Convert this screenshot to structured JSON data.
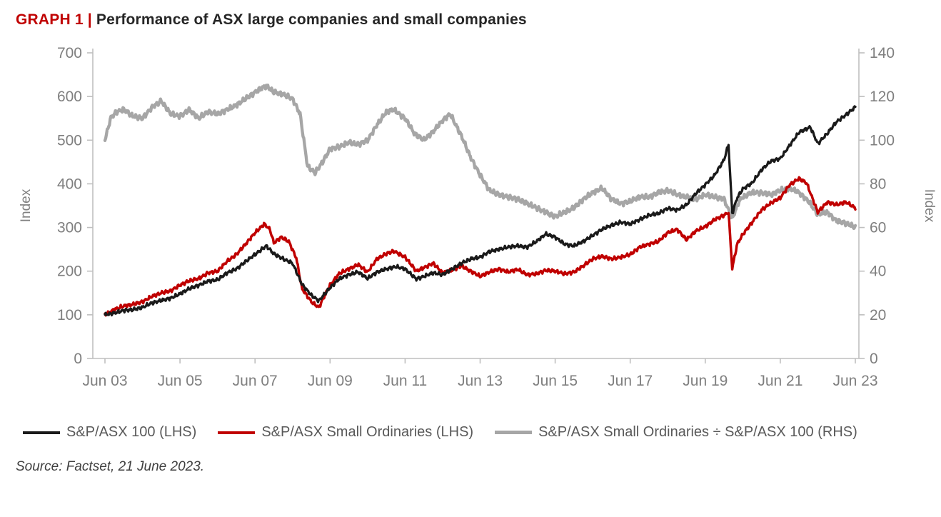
{
  "header": {
    "tag": "GRAPH 1 |",
    "title": "Performance of ASX large companies and small companies"
  },
  "source": "Source: Factset, 21 June 2023.",
  "colors": {
    "accent_red": "#C00000",
    "axis_line": "#BFBFBF",
    "tick_text": "#7F7F7F",
    "legend_text": "#595959"
  },
  "chart_data": {
    "type": "line",
    "title": "Performance of ASX large companies and small companies",
    "xlabel": "",
    "grid": false,
    "legend_position": "bottom",
    "left_axis": {
      "label": "Index",
      "min": 0,
      "max": 700,
      "ticks": [
        0,
        100,
        200,
        300,
        400,
        500,
        600,
        700
      ]
    },
    "right_axis": {
      "label": "Index",
      "min": 0,
      "max": 140,
      "ticks": [
        0,
        20,
        40,
        60,
        80,
        100,
        120,
        140
      ]
    },
    "x_axis": {
      "tick_positions": [
        2003.5,
        2005.5,
        2007.5,
        2009.5,
        2011.5,
        2013.5,
        2015.5,
        2017.5,
        2019.5,
        2021.5,
        2023.5
      ],
      "tick_labels": [
        "Jun 03",
        "Jun 05",
        "Jun 07",
        "Jun 09",
        "Jun 11",
        "Jun 13",
        "Jun 15",
        "Jun 17",
        "Jun 19",
        "Jun 21",
        "Jun 23"
      ],
      "range": [
        2003.5,
        2023.5
      ]
    },
    "series": [
      {
        "name": "S&P/ASX 100 (LHS)",
        "axis": "left",
        "color": "#1A1A1A",
        "points": [
          [
            2003.5,
            100
          ],
          [
            2003.75,
            104
          ],
          [
            2004,
            110
          ],
          [
            2004.25,
            112
          ],
          [
            2004.5,
            117
          ],
          [
            2004.75,
            127
          ],
          [
            2005,
            133
          ],
          [
            2005.25,
            138
          ],
          [
            2005.5,
            148
          ],
          [
            2005.75,
            160
          ],
          [
            2006,
            168
          ],
          [
            2006.25,
            177
          ],
          [
            2006.5,
            180
          ],
          [
            2006.75,
            196
          ],
          [
            2007,
            205
          ],
          [
            2007.25,
            222
          ],
          [
            2007.5,
            238
          ],
          [
            2007.8,
            258
          ],
          [
            2008,
            240
          ],
          [
            2008.25,
            228
          ],
          [
            2008.5,
            218
          ],
          [
            2008.75,
            170
          ],
          [
            2009,
            145
          ],
          [
            2009.2,
            132
          ],
          [
            2009.5,
            162
          ],
          [
            2009.75,
            183
          ],
          [
            2010,
            192
          ],
          [
            2010.25,
            198
          ],
          [
            2010.5,
            183
          ],
          [
            2010.75,
            198
          ],
          [
            2011,
            205
          ],
          [
            2011.25,
            210
          ],
          [
            2011.5,
            205
          ],
          [
            2011.8,
            182
          ],
          [
            2012,
            188
          ],
          [
            2012.25,
            196
          ],
          [
            2012.5,
            192
          ],
          [
            2012.75,
            205
          ],
          [
            2013,
            218
          ],
          [
            2013.25,
            228
          ],
          [
            2013.5,
            232
          ],
          [
            2013.75,
            245
          ],
          [
            2014,
            250
          ],
          [
            2014.25,
            255
          ],
          [
            2014.5,
            258
          ],
          [
            2014.75,
            255
          ],
          [
            2015,
            268
          ],
          [
            2015.25,
            285
          ],
          [
            2015.5,
            278
          ],
          [
            2015.75,
            262
          ],
          [
            2016,
            258
          ],
          [
            2016.25,
            268
          ],
          [
            2016.5,
            282
          ],
          [
            2016.75,
            296
          ],
          [
            2017,
            305
          ],
          [
            2017.25,
            312
          ],
          [
            2017.5,
            308
          ],
          [
            2017.75,
            318
          ],
          [
            2018,
            328
          ],
          [
            2018.25,
            332
          ],
          [
            2018.5,
            344
          ],
          [
            2018.75,
            340
          ],
          [
            2019,
            352
          ],
          [
            2019.25,
            378
          ],
          [
            2019.5,
            398
          ],
          [
            2019.75,
            420
          ],
          [
            2020,
            455
          ],
          [
            2020.12,
            490
          ],
          [
            2020.22,
            332
          ],
          [
            2020.35,
            368
          ],
          [
            2020.5,
            388
          ],
          [
            2020.75,
            402
          ],
          [
            2021,
            432
          ],
          [
            2021.25,
            452
          ],
          [
            2021.5,
            458
          ],
          [
            2021.75,
            488
          ],
          [
            2022,
            518
          ],
          [
            2022.3,
            530
          ],
          [
            2022.5,
            492
          ],
          [
            2022.75,
            515
          ],
          [
            2023,
            542
          ],
          [
            2023.25,
            558
          ],
          [
            2023.5,
            576
          ]
        ]
      },
      {
        "name": "S&P/ASX Small Ordinaries (LHS)",
        "axis": "left",
        "color": "#C00000",
        "points": [
          [
            2003.5,
            100
          ],
          [
            2003.75,
            112
          ],
          [
            2004,
            120
          ],
          [
            2004.25,
            124
          ],
          [
            2004.5,
            130
          ],
          [
            2004.75,
            142
          ],
          [
            2005,
            150
          ],
          [
            2005.25,
            155
          ],
          [
            2005.5,
            168
          ],
          [
            2005.75,
            178
          ],
          [
            2006,
            183
          ],
          [
            2006.25,
            196
          ],
          [
            2006.5,
            200
          ],
          [
            2006.75,
            222
          ],
          [
            2007,
            238
          ],
          [
            2007.25,
            262
          ],
          [
            2007.5,
            288
          ],
          [
            2007.75,
            308
          ],
          [
            2007.9,
            295
          ],
          [
            2008,
            265
          ],
          [
            2008.2,
            278
          ],
          [
            2008.4,
            268
          ],
          [
            2008.6,
            230
          ],
          [
            2008.75,
            160
          ],
          [
            2009,
            130
          ],
          [
            2009.2,
            117
          ],
          [
            2009.5,
            168
          ],
          [
            2009.75,
            195
          ],
          [
            2010,
            205
          ],
          [
            2010.25,
            215
          ],
          [
            2010.5,
            198
          ],
          [
            2010.75,
            228
          ],
          [
            2011,
            240
          ],
          [
            2011.2,
            246
          ],
          [
            2011.5,
            232
          ],
          [
            2011.8,
            200
          ],
          [
            2012,
            208
          ],
          [
            2012.25,
            218
          ],
          [
            2012.5,
            196
          ],
          [
            2012.75,
            202
          ],
          [
            2013,
            212
          ],
          [
            2013.25,
            200
          ],
          [
            2013.5,
            188
          ],
          [
            2013.75,
            198
          ],
          [
            2014,
            205
          ],
          [
            2014.25,
            198
          ],
          [
            2014.5,
            204
          ],
          [
            2014.75,
            192
          ],
          [
            2015,
            194
          ],
          [
            2015.25,
            202
          ],
          [
            2015.5,
            200
          ],
          [
            2015.75,
            194
          ],
          [
            2016,
            198
          ],
          [
            2016.25,
            212
          ],
          [
            2016.5,
            228
          ],
          [
            2016.75,
            234
          ],
          [
            2017,
            228
          ],
          [
            2017.25,
            232
          ],
          [
            2017.5,
            238
          ],
          [
            2017.75,
            255
          ],
          [
            2018,
            262
          ],
          [
            2018.25,
            268
          ],
          [
            2018.5,
            288
          ],
          [
            2018.75,
            296
          ],
          [
            2019,
            272
          ],
          [
            2019.25,
            292
          ],
          [
            2019.5,
            302
          ],
          [
            2019.75,
            318
          ],
          [
            2020,
            328
          ],
          [
            2020.12,
            335
          ],
          [
            2020.22,
            206
          ],
          [
            2020.35,
            262
          ],
          [
            2020.5,
            284
          ],
          [
            2020.75,
            312
          ],
          [
            2021,
            340
          ],
          [
            2021.25,
            356
          ],
          [
            2021.5,
            368
          ],
          [
            2021.75,
            398
          ],
          [
            2022,
            412
          ],
          [
            2022.2,
            402
          ],
          [
            2022.5,
            335
          ],
          [
            2022.75,
            358
          ],
          [
            2023,
            352
          ],
          [
            2023.25,
            358
          ],
          [
            2023.5,
            345
          ]
        ]
      },
      {
        "name": "S&P/ASX Small Ordinaries ÷ S&P/ASX 100 (RHS)",
        "axis": "right",
        "color": "#A6A6A6",
        "points": [
          [
            2003.5,
            100
          ],
          [
            2003.65,
            110
          ],
          [
            2003.8,
            113
          ],
          [
            2004,
            114
          ],
          [
            2004.25,
            111
          ],
          [
            2004.5,
            110
          ],
          [
            2004.75,
            115
          ],
          [
            2005,
            118
          ],
          [
            2005.25,
            112
          ],
          [
            2005.5,
            111
          ],
          [
            2005.75,
            114
          ],
          [
            2006,
            110
          ],
          [
            2006.25,
            113
          ],
          [
            2006.5,
            112
          ],
          [
            2006.75,
            114
          ],
          [
            2007,
            116
          ],
          [
            2007.25,
            119
          ],
          [
            2007.5,
            122
          ],
          [
            2007.8,
            125
          ],
          [
            2008,
            122
          ],
          [
            2008.25,
            121
          ],
          [
            2008.5,
            119
          ],
          [
            2008.7,
            112
          ],
          [
            2008.9,
            88
          ],
          [
            2009.1,
            85
          ],
          [
            2009.3,
            90
          ],
          [
            2009.5,
            96
          ],
          [
            2009.75,
            97
          ],
          [
            2010,
            99
          ],
          [
            2010.25,
            98
          ],
          [
            2010.5,
            100
          ],
          [
            2010.75,
            107
          ],
          [
            2011,
            113
          ],
          [
            2011.2,
            114
          ],
          [
            2011.5,
            110
          ],
          [
            2011.75,
            103
          ],
          [
            2012,
            100
          ],
          [
            2012.25,
            104
          ],
          [
            2012.5,
            109
          ],
          [
            2012.7,
            112
          ],
          [
            2013,
            102
          ],
          [
            2013.25,
            92
          ],
          [
            2013.5,
            84
          ],
          [
            2013.75,
            77
          ],
          [
            2014,
            75
          ],
          [
            2014.25,
            74
          ],
          [
            2014.5,
            73
          ],
          [
            2014.75,
            71
          ],
          [
            2015,
            69
          ],
          [
            2015.25,
            67
          ],
          [
            2015.5,
            65
          ],
          [
            2015.75,
            67
          ],
          [
            2016,
            69
          ],
          [
            2016.25,
            73
          ],
          [
            2016.5,
            76
          ],
          [
            2016.75,
            78
          ],
          [
            2017,
            73
          ],
          [
            2017.25,
            71
          ],
          [
            2017.5,
            72
          ],
          [
            2017.75,
            74
          ],
          [
            2018,
            74
          ],
          [
            2018.25,
            76
          ],
          [
            2018.5,
            77
          ],
          [
            2018.75,
            75
          ],
          [
            2019,
            74
          ],
          [
            2019.25,
            73
          ],
          [
            2019.5,
            75
          ],
          [
            2019.75,
            74
          ],
          [
            2020,
            73
          ],
          [
            2020.22,
            64
          ],
          [
            2020.4,
            72
          ],
          [
            2020.5,
            74
          ],
          [
            2020.75,
            76
          ],
          [
            2021,
            76
          ],
          [
            2021.25,
            75
          ],
          [
            2021.5,
            77
          ],
          [
            2021.75,
            78
          ],
          [
            2022,
            76
          ],
          [
            2022.25,
            72
          ],
          [
            2022.5,
            66
          ],
          [
            2022.75,
            67
          ],
          [
            2023,
            63
          ],
          [
            2023.25,
            62
          ],
          [
            2023.5,
            60
          ]
        ]
      }
    ]
  }
}
